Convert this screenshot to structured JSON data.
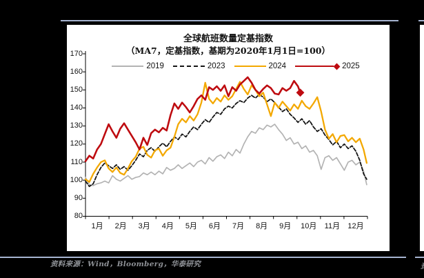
{
  "footer": {
    "source": "资料来源：Wind，Bloomberg，华泰研究",
    "adjacent_fragment": "资"
  },
  "chart_data": {
    "type": "line",
    "title": "全球航班数量定基指数",
    "subtitle": "（MA7，定基指数，基期为2020年1月1日=100）",
    "legend_position": "top",
    "grid": false,
    "axis_color": "#000000",
    "y_axis": {
      "min": 80,
      "max": 170,
      "step": 10,
      "tick_labels": [
        "80",
        "90",
        "100",
        "110",
        "120",
        "130",
        "140",
        "150",
        "160",
        "170"
      ]
    },
    "x_axis": {
      "total_days": 365,
      "tick_labels": [
        "1月",
        "2月",
        "3月",
        "4月",
        "5月",
        "6月",
        "7月",
        "8月",
        "9月",
        "10月",
        "11月",
        "12月"
      ]
    },
    "series": [
      {
        "name": "2019",
        "color": "#B3B3B3",
        "style": "solid",
        "width": 1.7,
        "step_days": 5,
        "end_day": 364,
        "end_marker": null,
        "values": [
          101.5,
          97.5,
          97,
          98,
          98.5,
          99.5,
          98.5,
          102.5,
          100.5,
          99.5,
          101,
          102.5,
          100.5,
          101.5,
          102,
          104,
          103,
          104.5,
          103,
          105,
          103.5,
          107,
          105.5,
          106.5,
          108.5,
          106.5,
          108,
          109.5,
          107.5,
          110,
          111,
          109,
          112.5,
          110.5,
          113,
          114,
          112,
          115.5,
          113.5,
          117,
          115,
          120,
          124,
          127,
          126,
          129,
          128,
          130.5,
          129.5,
          131,
          128,
          125.5,
          122,
          123.5,
          120,
          121,
          117.5,
          119,
          115.5,
          116.5,
          113.5,
          106,
          112.5,
          113.5,
          111,
          112.5,
          109,
          105.5,
          110,
          111,
          108.5,
          110,
          105,
          97.5
        ]
      },
      {
        "name": "2023",
        "color": "#141414",
        "style": "dashed",
        "width": 1.8,
        "step_days": 5,
        "end_day": 364,
        "end_marker": null,
        "values": [
          99.5,
          96.5,
          98,
          103,
          107,
          109.5,
          108,
          106.5,
          108.5,
          106,
          107.5,
          105.5,
          108,
          111,
          114.5,
          113,
          116.5,
          118,
          116,
          118.5,
          120.5,
          118.5,
          121.5,
          124,
          122.5,
          125.5,
          124,
          127,
          129.5,
          128,
          131,
          133.5,
          132,
          135,
          137.5,
          136.5,
          139.5,
          141,
          140,
          142.5,
          144,
          143,
          145.5,
          147,
          145.5,
          147.5,
          146,
          143.5,
          145,
          143,
          140.5,
          138,
          139.5,
          136.5,
          134.5,
          132,
          134,
          131,
          133,
          129.5,
          127,
          128.5,
          125,
          122.5,
          119.5,
          121.5,
          118,
          120,
          117.5,
          119,
          116,
          111,
          103.5,
          100.5
        ]
      },
      {
        "name": "2024",
        "color": "#F3A800",
        "style": "solid",
        "width": 2.3,
        "step_days": 5,
        "end_day": 364,
        "end_marker": null,
        "values": [
          100.5,
          99,
          103.5,
          107,
          110,
          111,
          106.5,
          104.5,
          107,
          104,
          103,
          106.5,
          110.5,
          113,
          117.5,
          118.5,
          114,
          112.5,
          116.5,
          117.5,
          113.5,
          116.5,
          118,
          124,
          131,
          134,
          132,
          135.5,
          133,
          136.5,
          143,
          154,
          145,
          142.5,
          145.5,
          143.5,
          147,
          144.5,
          146.5,
          150.5,
          154.5,
          150.5,
          147.5,
          152.5,
          150,
          146.5,
          148.5,
          142,
          135.5,
          143,
          140,
          143.5,
          141,
          138.5,
          142,
          139.5,
          144,
          141,
          139.5,
          142.5,
          146,
          138,
          128,
          123,
          125.5,
          121,
          124.5,
          125,
          121.5,
          123.5,
          121,
          123,
          117,
          109.5
        ]
      },
      {
        "name": "2025",
        "color": "#BE0B10",
        "style": "solid",
        "width": 2.6,
        "step_days": 5,
        "end_day": 278,
        "end_marker": "diamond",
        "values": [
          110.5,
          113.5,
          112,
          117,
          120,
          125.5,
          131,
          127,
          123.5,
          128.5,
          131.5,
          128,
          124.5,
          121,
          117,
          123.5,
          119.5,
          126,
          128,
          126.5,
          129,
          127.5,
          136,
          142.5,
          139.5,
          143,
          140.5,
          137.5,
          141,
          145,
          147,
          144.5,
          151.5,
          150,
          152,
          149.5,
          152.5,
          146.5,
          151.5,
          149.5,
          153,
          155,
          157,
          154,
          150,
          148,
          150.5,
          152.5,
          151,
          148,
          147.5,
          151,
          149.5,
          151,
          155,
          152,
          148.5
        ]
      }
    ]
  }
}
